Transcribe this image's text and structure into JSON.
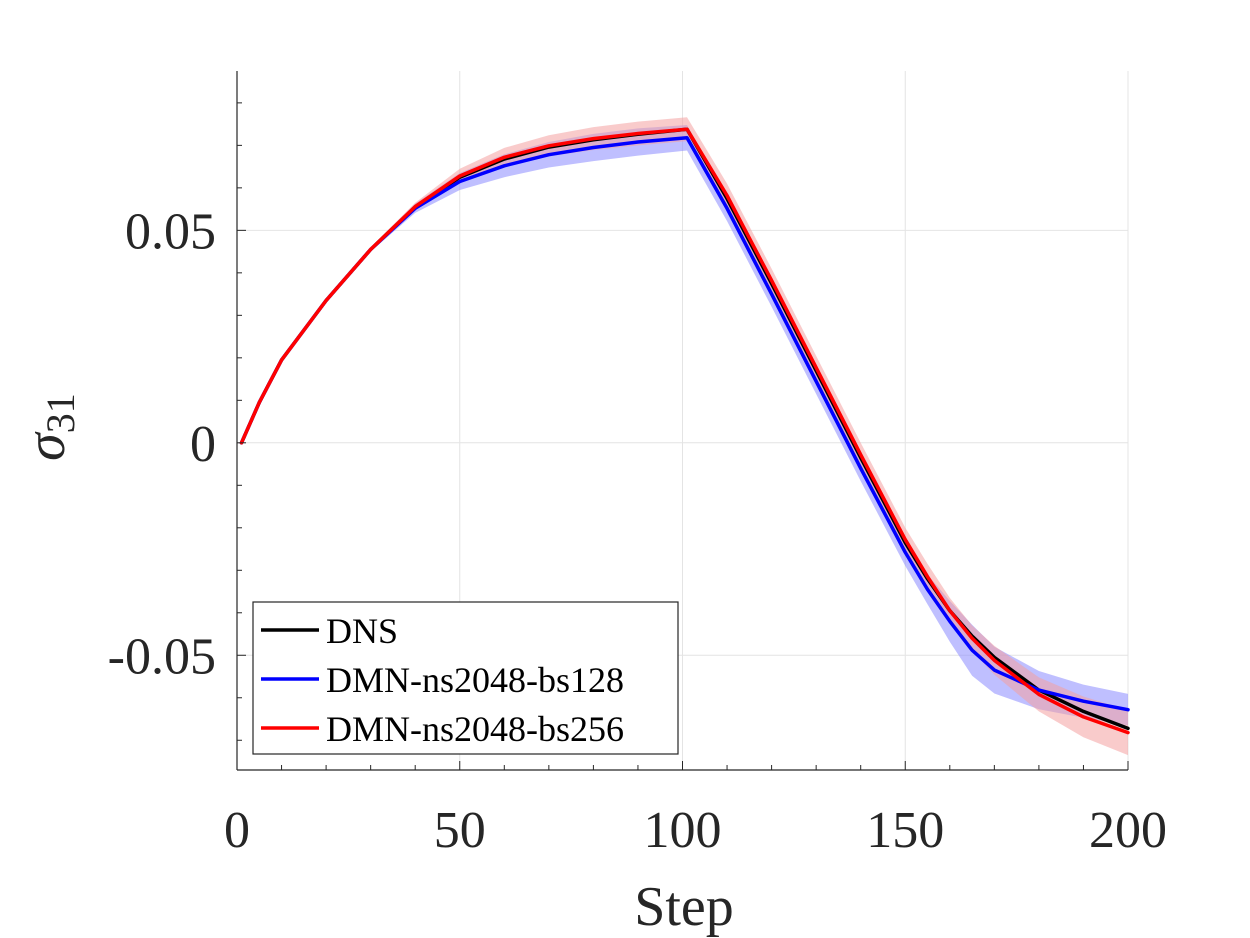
{
  "chart_data": {
    "type": "line",
    "xlabel": "Step",
    "ylabel_symbol": "σ",
    "ylabel_subscript": "31",
    "xlim": [
      0,
      200
    ],
    "ylim": [
      -0.077,
      0.0875
    ],
    "x_ticks": [
      0,
      50,
      100,
      150,
      200
    ],
    "x_tick_labels": [
      "0",
      "50",
      "100",
      "150",
      "200"
    ],
    "y_ticks": [
      -0.05,
      0,
      0.05
    ],
    "y_tick_labels": [
      "-0.05",
      "0",
      "0.05"
    ],
    "x_minor_step": 10,
    "y_minor_step": 0.01,
    "grid": true,
    "legend_position": "bottom-left",
    "series": [
      {
        "name": "DNS",
        "color": "#000000",
        "x": [
          1,
          5,
          10,
          20,
          30,
          40,
          50,
          60,
          70,
          80,
          90,
          101,
          110,
          120,
          130,
          140,
          150,
          155,
          160,
          165,
          170,
          180,
          190,
          200
        ],
        "y": [
          0.0,
          0.0095,
          0.0195,
          0.0335,
          0.0455,
          0.0555,
          0.0625,
          0.0668,
          0.0696,
          0.0713,
          0.0726,
          0.0738,
          0.0575,
          0.0375,
          0.017,
          -0.0035,
          -0.0235,
          -0.032,
          -0.0395,
          -0.0455,
          -0.0505,
          -0.0582,
          -0.0632,
          -0.0672
        ]
      },
      {
        "name": "DMN-ns2048-bs128",
        "color": "#0000ff",
        "band_color": "#8a8aff",
        "x": [
          1,
          5,
          10,
          20,
          30,
          40,
          50,
          60,
          70,
          80,
          90,
          101,
          110,
          120,
          130,
          140,
          150,
          155,
          160,
          165,
          170,
          180,
          190,
          200
        ],
        "y": [
          0.0,
          0.0095,
          0.0195,
          0.0335,
          0.0455,
          0.0552,
          0.0615,
          0.0652,
          0.0678,
          0.0695,
          0.0708,
          0.0718,
          0.0552,
          0.035,
          0.0145,
          -0.006,
          -0.0258,
          -0.0345,
          -0.042,
          -0.0488,
          -0.0535,
          -0.0582,
          -0.0608,
          -0.0628
        ],
        "band_lower": [
          0.0,
          0.0093,
          0.0192,
          0.0331,
          0.045,
          0.0541,
          0.0595,
          0.0625,
          0.0648,
          0.0663,
          0.0676,
          0.0688,
          0.0522,
          0.032,
          0.0115,
          -0.009,
          -0.029,
          -0.038,
          -0.0468,
          -0.0548,
          -0.059,
          -0.0627,
          -0.0647,
          -0.0665
        ],
        "band_upper": [
          0.0,
          0.0097,
          0.0198,
          0.0339,
          0.046,
          0.0563,
          0.0635,
          0.0679,
          0.0708,
          0.0727,
          0.074,
          0.0748,
          0.0582,
          0.038,
          0.0175,
          -0.003,
          -0.0226,
          -0.031,
          -0.0372,
          -0.0428,
          -0.048,
          -0.0537,
          -0.0569,
          -0.0591
        ]
      },
      {
        "name": "DMN-ns2048-bs256",
        "color": "#ff0000",
        "band_color": "#f4a0a0",
        "x": [
          1,
          5,
          10,
          20,
          30,
          40,
          50,
          60,
          70,
          80,
          90,
          101,
          110,
          120,
          130,
          140,
          150,
          155,
          160,
          165,
          170,
          180,
          190,
          200
        ],
        "y": [
          0.0,
          0.0095,
          0.0195,
          0.0335,
          0.0455,
          0.0556,
          0.0628,
          0.0672,
          0.0699,
          0.0716,
          0.0728,
          0.0738,
          0.0582,
          0.0382,
          0.0177,
          -0.0028,
          -0.0228,
          -0.0315,
          -0.0395,
          -0.046,
          -0.0512,
          -0.0592,
          -0.0645,
          -0.0682
        ],
        "band_lower": [
          0.0,
          0.0093,
          0.0192,
          0.0331,
          0.045,
          0.0547,
          0.0611,
          0.065,
          0.0674,
          0.0689,
          0.07,
          0.071,
          0.0554,
          0.0354,
          0.0149,
          -0.0056,
          -0.0256,
          -0.0345,
          -0.0425,
          -0.049,
          -0.0546,
          -0.0632,
          -0.0693,
          -0.0735
        ],
        "band_upper": [
          0.0,
          0.0097,
          0.0198,
          0.0339,
          0.046,
          0.0565,
          0.0645,
          0.0694,
          0.0724,
          0.0743,
          0.0756,
          0.0766,
          0.061,
          0.041,
          0.0205,
          0.0,
          -0.02,
          -0.0285,
          -0.0365,
          -0.043,
          -0.0478,
          -0.0552,
          -0.0597,
          -0.0629
        ]
      }
    ]
  }
}
